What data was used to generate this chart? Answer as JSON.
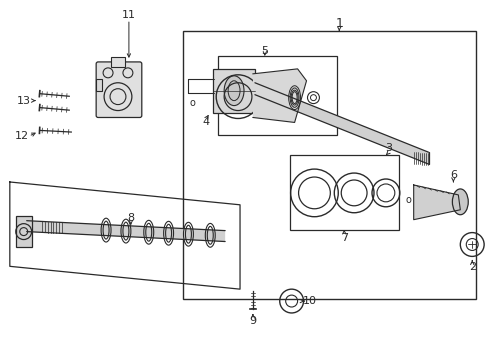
{
  "background_color": "#ffffff",
  "line_color": "#2a2a2a",
  "fig_w": 4.89,
  "fig_h": 3.6,
  "dpi": 100
}
